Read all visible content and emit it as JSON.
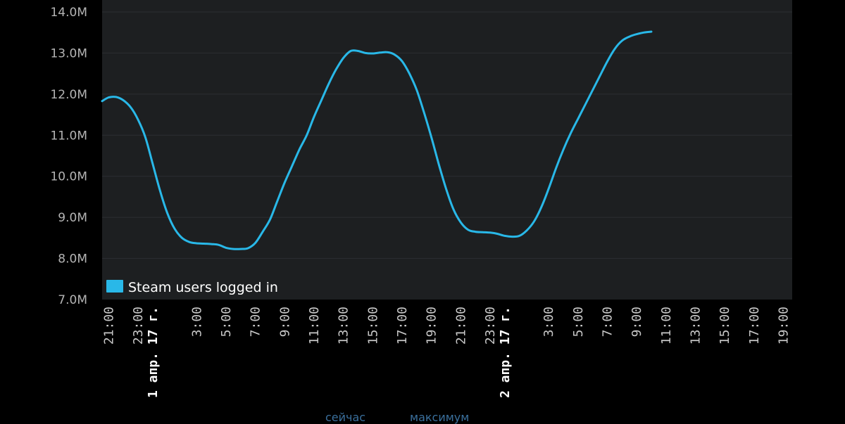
{
  "chart_data": {
    "type": "line",
    "ylim": [
      7000000,
      14000000
    ],
    "yticks": [
      {
        "value": 7000000,
        "label": "7.0M"
      },
      {
        "value": 8000000,
        "label": "8.0M"
      },
      {
        "value": 9000000,
        "label": "9.0M"
      },
      {
        "value": 10000000,
        "label": "10.0M"
      },
      {
        "value": 11000000,
        "label": "11.0M"
      },
      {
        "value": 12000000,
        "label": "12.0M"
      },
      {
        "value": 13000000,
        "label": "13.0M"
      },
      {
        "value": 14000000,
        "label": "14.0M"
      }
    ],
    "xticks": [
      {
        "hour": 21,
        "label": "21:00"
      },
      {
        "hour": 23,
        "label": "23:00"
      },
      {
        "hour": 24,
        "label": "1 апр. 17 г.",
        "major": true
      },
      {
        "hour": 27,
        "label": "3:00"
      },
      {
        "hour": 29,
        "label": "5:00"
      },
      {
        "hour": 31,
        "label": "7:00"
      },
      {
        "hour": 33,
        "label": "9:00"
      },
      {
        "hour": 35,
        "label": "11:00"
      },
      {
        "hour": 37,
        "label": "13:00"
      },
      {
        "hour": 39,
        "label": "15:00"
      },
      {
        "hour": 41,
        "label": "17:00"
      },
      {
        "hour": 43,
        "label": "19:00"
      },
      {
        "hour": 45,
        "label": "21:00"
      },
      {
        "hour": 47,
        "label": "23:00"
      },
      {
        "hour": 48,
        "label": "2 апр. 17 г.",
        "major": true
      },
      {
        "hour": 51,
        "label": "3:00"
      },
      {
        "hour": 53,
        "label": "5:00"
      },
      {
        "hour": 55,
        "label": "7:00"
      },
      {
        "hour": 57,
        "label": "9:00"
      },
      {
        "hour": 59,
        "label": "11:00"
      },
      {
        "hour": 61,
        "label": "13:00"
      },
      {
        "hour": 63,
        "label": "15:00"
      },
      {
        "hour": 65,
        "label": "17:00"
      },
      {
        "hour": 67,
        "label": "19:00"
      }
    ],
    "xlim": [
      20.55,
      67.6
    ],
    "series": [
      {
        "name": "Steam users logged in",
        "color": "#29b8e8",
        "points": [
          [
            20.55,
            11830000
          ],
          [
            21.0,
            11920000
          ],
          [
            21.5,
            11930000
          ],
          [
            22.0,
            11850000
          ],
          [
            22.5,
            11680000
          ],
          [
            23.0,
            11380000
          ],
          [
            23.5,
            10950000
          ],
          [
            24.0,
            10300000
          ],
          [
            24.5,
            9650000
          ],
          [
            25.0,
            9100000
          ],
          [
            25.5,
            8720000
          ],
          [
            26.0,
            8500000
          ],
          [
            26.5,
            8400000
          ],
          [
            27.0,
            8370000
          ],
          [
            27.5,
            8360000
          ],
          [
            28.0,
            8350000
          ],
          [
            28.5,
            8330000
          ],
          [
            29.0,
            8260000
          ],
          [
            29.5,
            8230000
          ],
          [
            30.0,
            8230000
          ],
          [
            30.5,
            8250000
          ],
          [
            31.0,
            8380000
          ],
          [
            31.5,
            8650000
          ],
          [
            32.0,
            8950000
          ],
          [
            32.5,
            9400000
          ],
          [
            33.0,
            9850000
          ],
          [
            33.5,
            10250000
          ],
          [
            34.0,
            10650000
          ],
          [
            34.5,
            11000000
          ],
          [
            35.0,
            11450000
          ],
          [
            35.5,
            11850000
          ],
          [
            36.0,
            12250000
          ],
          [
            36.5,
            12600000
          ],
          [
            37.0,
            12880000
          ],
          [
            37.5,
            13050000
          ],
          [
            38.0,
            13050000
          ],
          [
            38.5,
            13000000
          ],
          [
            39.0,
            12990000
          ],
          [
            39.5,
            13010000
          ],
          [
            40.0,
            13020000
          ],
          [
            40.5,
            12960000
          ],
          [
            41.0,
            12800000
          ],
          [
            41.5,
            12500000
          ],
          [
            42.0,
            12100000
          ],
          [
            42.5,
            11550000
          ],
          [
            43.0,
            10950000
          ],
          [
            43.5,
            10300000
          ],
          [
            44.0,
            9700000
          ],
          [
            44.5,
            9200000
          ],
          [
            45.0,
            8880000
          ],
          [
            45.5,
            8700000
          ],
          [
            46.0,
            8650000
          ],
          [
            46.5,
            8640000
          ],
          [
            47.0,
            8630000
          ],
          [
            47.5,
            8600000
          ],
          [
            48.0,
            8550000
          ],
          [
            48.5,
            8530000
          ],
          [
            49.0,
            8550000
          ],
          [
            49.5,
            8680000
          ],
          [
            50.0,
            8900000
          ],
          [
            50.5,
            9250000
          ],
          [
            51.0,
            9700000
          ],
          [
            51.5,
            10200000
          ],
          [
            52.0,
            10650000
          ],
          [
            52.5,
            11050000
          ],
          [
            53.0,
            11400000
          ],
          [
            53.5,
            11750000
          ],
          [
            54.0,
            12100000
          ],
          [
            54.5,
            12450000
          ],
          [
            55.0,
            12800000
          ],
          [
            55.5,
            13100000
          ],
          [
            56.0,
            13300000
          ],
          [
            56.5,
            13400000
          ],
          [
            57.0,
            13460000
          ],
          [
            57.5,
            13500000
          ],
          [
            58.0,
            13520000
          ]
        ]
      }
    ],
    "grid": true,
    "legend_position": "bottom-left"
  },
  "legend": {
    "label": "Steam users logged in",
    "swatch_color": "#29b8e8"
  },
  "footer": {
    "now_label": "сейчас",
    "max_label": "максимум"
  },
  "colors": {
    "background": "#000000",
    "plot_background": "#1d1f21",
    "grid": "#2c2f32",
    "line": "#29b8e8"
  }
}
